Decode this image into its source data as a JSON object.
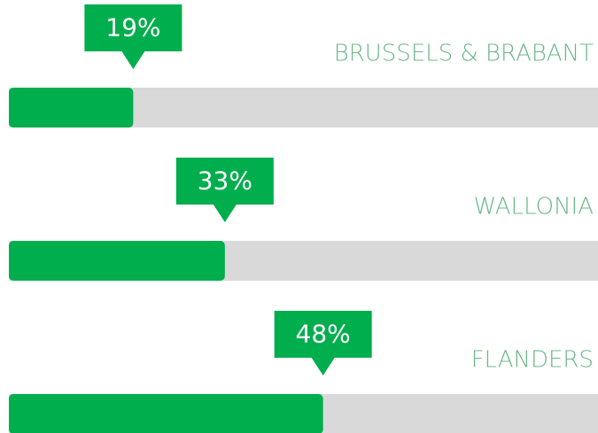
{
  "chart_data": {
    "type": "progress",
    "categories": [
      "BRUSSELS & BRABANT",
      "WALLONIA",
      "FLANDERS"
    ],
    "values": [
      19,
      33,
      48
    ],
    "value_labels": [
      "19%",
      "33%",
      "48%"
    ],
    "color": "#00ae4d",
    "track_color": "#d9d9d9",
    "xlim": [
      0,
      90
    ]
  }
}
